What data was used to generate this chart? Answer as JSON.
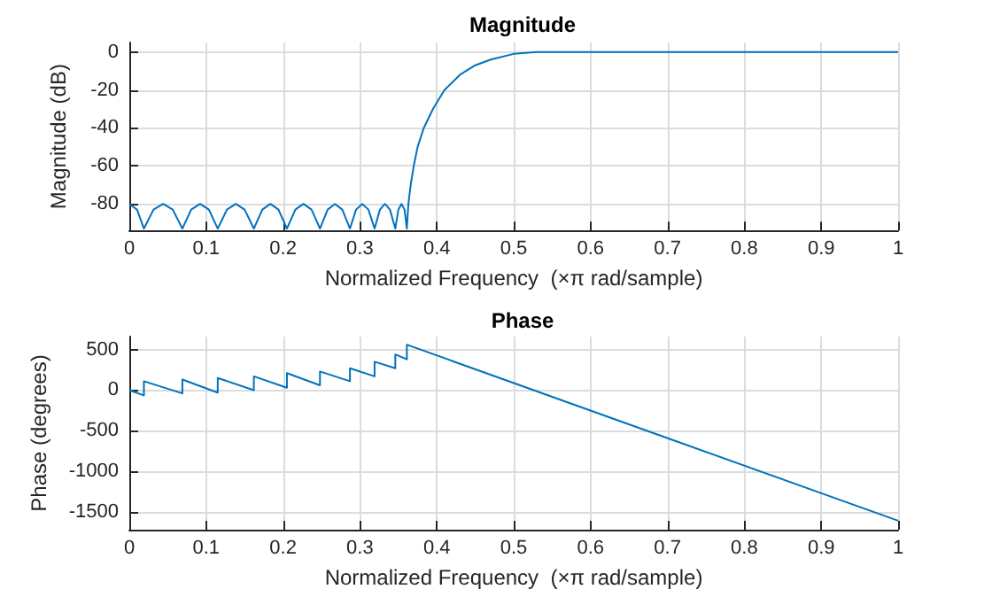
{
  "chart_data": [
    {
      "type": "line",
      "title": "Magnitude",
      "xlabel": "Normalized Frequency  (×π rad/sample)",
      "ylabel": "Magnitude (dB)",
      "xlim": [
        0,
        1
      ],
      "xticks": [
        0,
        0.1,
        0.2,
        0.3,
        0.4,
        0.5,
        0.6,
        0.7,
        0.8,
        0.9,
        1
      ],
      "ylim": [
        -94,
        5
      ],
      "yticks": [
        -80,
        -60,
        -40,
        -20,
        0
      ],
      "grid": true,
      "series": [
        {
          "color": "#0072bd",
          "x": [
            0,
            0.01,
            0.019,
            0.0315,
            0.044,
            0.0565,
            0.069,
            0.0805,
            0.092,
            0.1035,
            0.115,
            0.127,
            0.1385,
            0.15,
            0.162,
            0.173,
            0.1835,
            0.194,
            0.205,
            0.216,
            0.2265,
            0.237,
            0.248,
            0.258,
            0.2675,
            0.277,
            0.287,
            0.295,
            0.303,
            0.311,
            0.319,
            0.326,
            0.3325,
            0.339,
            0.346,
            0.35,
            0.354,
            0.358,
            0.361,
            0.363,
            0.366,
            0.37,
            0.375,
            0.383,
            0.395,
            0.41,
            0.43,
            0.45,
            0.47,
            0.5,
            0.53,
            1
          ],
          "values": [
            -80,
            -83,
            -93,
            -83,
            -80,
            -83,
            -93,
            -83,
            -80,
            -83,
            -93,
            -83,
            -80,
            -83,
            -93,
            -83,
            -80,
            -83,
            -93,
            -83,
            -80,
            -83,
            -93,
            -83,
            -80,
            -83,
            -93,
            -83,
            -80,
            -83,
            -93,
            -83,
            -80,
            -83,
            -93,
            -83,
            -80,
            -83,
            -93,
            -80,
            -70,
            -60,
            -50,
            -40,
            -30,
            -20,
            -12,
            -7,
            -4,
            -1,
            0,
            0
          ]
        }
      ]
    },
    {
      "type": "line",
      "title": "Phase",
      "xlabel": "Normalized Frequency  (×π rad/sample)",
      "ylabel": "Phase (degrees)",
      "xlim": [
        0,
        1
      ],
      "xticks": [
        0,
        0.1,
        0.2,
        0.3,
        0.4,
        0.5,
        0.6,
        0.7,
        0.8,
        0.9,
        1
      ],
      "ylim": [
        -1720,
        660
      ],
      "yticks": [
        -1500,
        -1000,
        -500,
        0,
        500
      ],
      "grid": true,
      "series": [
        {
          "color": "#0072bd",
          "x": [
            0,
            0.019,
            0.019,
            0.069,
            0.069,
            0.115,
            0.115,
            0.162,
            0.162,
            0.205,
            0.205,
            0.248,
            0.248,
            0.287,
            0.287,
            0.319,
            0.319,
            0.346,
            0.346,
            0.361,
            0.361,
            1
          ],
          "values": [
            0,
            -65,
            110,
            -40,
            130,
            -30,
            150,
            0,
            170,
            30,
            210,
            60,
            230,
            110,
            270,
            170,
            350,
            270,
            440,
            380,
            560,
            -1610
          ]
        }
      ]
    }
  ]
}
